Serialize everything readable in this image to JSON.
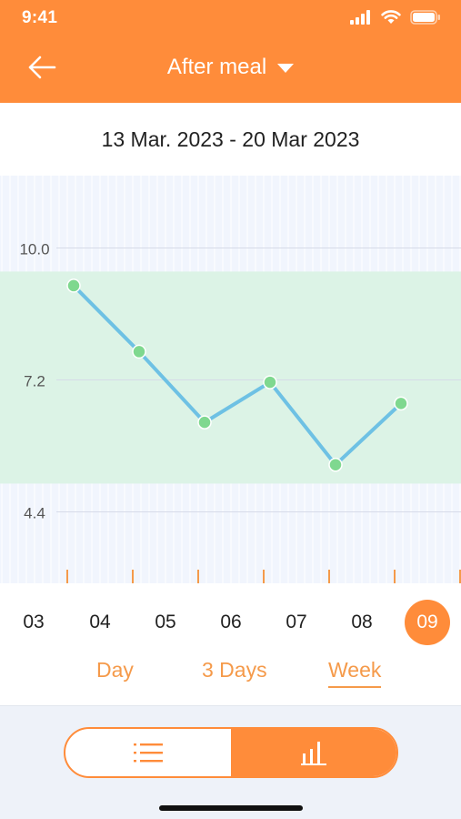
{
  "status_bar": {
    "time": "9:41"
  },
  "header": {
    "title": "After meal"
  },
  "date_range": "13 Mar. 2023 - 20 Mar 2023",
  "colors": {
    "accent": "#ff8c3a",
    "line": "#6ec1e4",
    "point": "#7fd88f",
    "target_band": "#dcf3e6",
    "chart_bg": "#f1f5fd"
  },
  "chart_data": {
    "type": "line",
    "x": [
      "04",
      "05",
      "06",
      "07",
      "08",
      "09"
    ],
    "series": [
      {
        "values": [
          9.2,
          7.8,
          6.3,
          7.15,
          5.4,
          6.7
        ]
      }
    ],
    "yticks": [
      "10.0",
      "7.2",
      "4.4"
    ],
    "ylim": [
      3.0,
      11.4
    ],
    "target_range": [
      5.0,
      9.5
    ],
    "grid": true
  },
  "days": [
    {
      "label": "03",
      "selected": false
    },
    {
      "label": "04",
      "selected": false
    },
    {
      "label": "05",
      "selected": false
    },
    {
      "label": "06",
      "selected": false
    },
    {
      "label": "07",
      "selected": false
    },
    {
      "label": "08",
      "selected": false
    },
    {
      "label": "09",
      "selected": true
    }
  ],
  "range_tabs": [
    {
      "label": "Day",
      "active": false
    },
    {
      "label": "3 Days",
      "active": false
    },
    {
      "label": "Week",
      "active": true
    }
  ],
  "view_toggle": {
    "left_icon": "list-icon",
    "right_icon": "bar-chart-icon",
    "active": "right"
  }
}
